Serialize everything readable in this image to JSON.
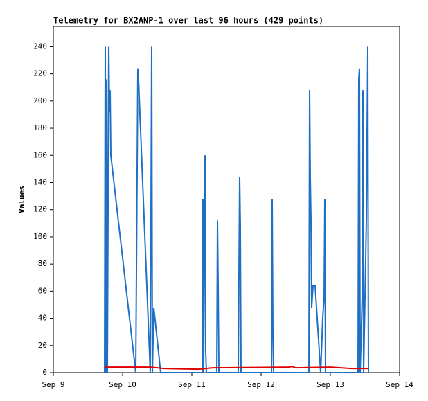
{
  "chart_data": {
    "type": "line",
    "title": "Telemetry for BX2ANP-1 over last 96 hours (429 points)",
    "y_label": "Values",
    "xlim": [
      9,
      14
    ],
    "xticks": [
      {
        "value": 9,
        "label": "Sep 9"
      },
      {
        "value": 10,
        "label": "Sep 10"
      },
      {
        "value": 11,
        "label": "Sep 11"
      },
      {
        "value": 12,
        "label": "Sep 12"
      },
      {
        "value": 13,
        "label": "Sep 13"
      },
      {
        "value": 14,
        "label": "Sep 14"
      }
    ],
    "ylim": [
      0,
      255
    ],
    "yticks": [
      0,
      20,
      40,
      60,
      80,
      100,
      120,
      140,
      160,
      180,
      200,
      220,
      240
    ],
    "grid": false,
    "series": [
      {
        "color": "#1f6fc4",
        "x": [
          9.74,
          9.75,
          9.76,
          9.77,
          9.78,
          9.8,
          9.81,
          9.82,
          9.83,
          10.19,
          10.22,
          10.23,
          10.4,
          10.42,
          10.43,
          10.45,
          10.55,
          11.15,
          11.16,
          11.17,
          11.18,
          11.19,
          11.2,
          11.21,
          11.36,
          11.37,
          11.38,
          11.39,
          11.67,
          11.68,
          11.69,
          11.7,
          11.71,
          12.15,
          12.16,
          12.17,
          12.18,
          12.69,
          12.7,
          12.71,
          12.72,
          12.73,
          12.75,
          12.78,
          12.86,
          12.89,
          12.91,
          12.92,
          12.93,
          13.4,
          13.41,
          13.42,
          13.43,
          13.46,
          13.47,
          13.48,
          13.52,
          13.54,
          13.55
        ],
        "values": [
          0,
          240,
          0,
          216,
          0,
          240,
          192,
          208,
          160,
          0,
          224,
          216,
          0,
          240,
          0,
          48,
          0,
          0,
          128,
          0,
          112,
          160,
          16,
          0,
          0,
          112,
          64,
          0,
          0,
          72,
          144,
          108,
          0,
          0,
          128,
          32,
          0,
          0,
          208,
          144,
          112,
          48,
          64,
          64,
          0,
          40,
          56,
          128,
          0,
          0,
          216,
          224,
          0,
          56,
          208,
          0,
          112,
          240,
          0
        ]
      },
      {
        "color": "#e00000",
        "x": [
          9.75,
          10.4,
          10.6,
          11.1,
          11.3,
          12.4,
          12.45,
          12.5,
          13.0,
          13.3,
          13.55
        ],
        "values": [
          4,
          4,
          3,
          2.5,
          3.5,
          4,
          4.5,
          3.5,
          4,
          3,
          3
        ]
      }
    ]
  }
}
